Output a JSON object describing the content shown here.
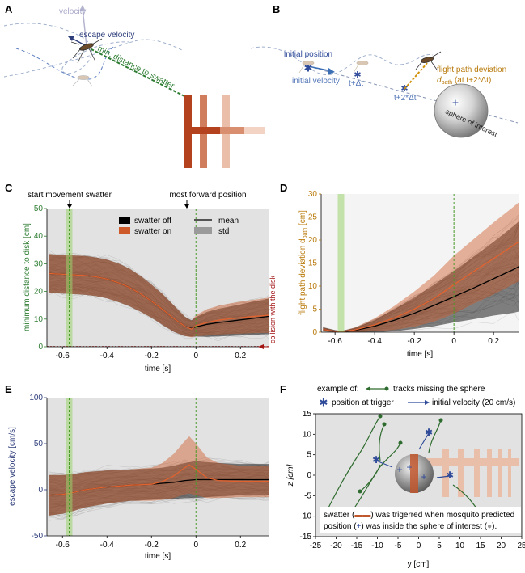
{
  "panels": {
    "A": "A",
    "B": "B",
    "C": "C",
    "D": "D",
    "E": "E",
    "F": "F"
  },
  "panelA": {
    "velocity": "velocity",
    "escape_velocity": "escape velocity",
    "min_distance": "min. distance to swatter"
  },
  "panelB": {
    "initial_position": "initial position",
    "initial_velocity": "initial velocity",
    "t_dt": "t+Δt",
    "t_2dt": "t+2*Δt",
    "deviation_line1": "flight path deviation",
    "deviation_line2": "d",
    "deviation_sub": "path",
    "deviation_suffix": " (at t+2*Δt)",
    "sphere": "sphere of interest"
  },
  "panelC": {
    "ylabel": "minimum distance to disk [cm]",
    "xlabel": "time [s]",
    "start_label": "start movement swatter",
    "forward_label": "most forward position",
    "collision_label": "collision with the disk",
    "legend": {
      "off": "swatter off",
      "on": "swatter on",
      "mean": "mean",
      "std": "std"
    },
    "yticks": [
      "0",
      "10",
      "20",
      "30",
      "40",
      "50"
    ],
    "xticks": [
      "-0.6",
      "-0.4",
      "-0.2",
      "0",
      "0.2"
    ]
  },
  "panelD": {
    "ylabel_main": "flight path deviation d",
    "ylabel_sub": "path",
    "ylabel_unit": " [cm]",
    "xlabel": "time [s]",
    "yticks": [
      "0",
      "5",
      "10",
      "15",
      "20",
      "25",
      "30"
    ],
    "xticks": [
      "-0.6",
      "-0.4",
      "-0.2",
      "0",
      "0.2"
    ]
  },
  "panelE": {
    "ylabel": "escape velocity [cm/s]",
    "xlabel": "time [s]",
    "yticks": [
      "-50",
      "0",
      "50",
      "100"
    ],
    "xticks": [
      "-0.6",
      "-0.4",
      "-0.2",
      "0",
      "0.2"
    ]
  },
  "panelF": {
    "example_of": "example of:",
    "tracks": "tracks missing the sphere",
    "position_trigger": "position at trigger",
    "initial_velocity": "initial velocity (20 cm/s)",
    "note_line1a": "swatter (",
    "note_line1b": ") was trigerred when mosquito predicted",
    "note_line2a": "position (",
    "note_line2b": ") was inside the sphere of interest (",
    "note_line2c": ").",
    "ylabel": "z [cm]",
    "xlabel": "y [cm]",
    "yticks": [
      "15",
      "10",
      "5",
      "0",
      "-5",
      "-10",
      "-15"
    ],
    "xticks": [
      "-25",
      "-20",
      "-15",
      "-10",
      "-5",
      "0",
      "5",
      "10",
      "15",
      "20",
      "25"
    ]
  },
  "chart_data": [
    {
      "type": "line",
      "panel": "C",
      "xlabel": "time [s]",
      "ylabel": "minimum distance to disk [cm]",
      "xlim": [
        -0.67,
        0.33
      ],
      "ylim": [
        0,
        50
      ],
      "series": [
        {
          "name": "swatter off",
          "x": [
            -0.66,
            -0.6,
            -0.55,
            -0.5,
            -0.45,
            -0.4,
            -0.35,
            -0.3,
            -0.25,
            -0.2,
            -0.15,
            -0.1,
            -0.05,
            -0.02,
            0,
            0.05,
            0.1,
            0.15,
            0.2,
            0.25,
            0.3,
            0.33
          ],
          "mean": [
            26.5,
            26.2,
            26,
            25.8,
            25.3,
            24.5,
            23.2,
            21.5,
            19.2,
            16.5,
            13.5,
            10.2,
            7.4,
            6.6,
            7.2,
            8.1,
            8.7,
            9.2,
            9.7,
            10.2,
            10.7,
            11
          ],
          "std": [
            7,
            7,
            7,
            7,
            7,
            7,
            7,
            6.8,
            6.5,
            6,
            5.6,
            4.8,
            3.5,
            3,
            3.5,
            4.5,
            5,
            5.3,
            5.6,
            6,
            6.2,
            6.5
          ]
        },
        {
          "name": "swatter on",
          "x": [
            -0.66,
            -0.6,
            -0.55,
            -0.5,
            -0.45,
            -0.4,
            -0.35,
            -0.3,
            -0.25,
            -0.2,
            -0.15,
            -0.1,
            -0.05,
            -0.02,
            0,
            0.05,
            0.1,
            0.15,
            0.2,
            0.25,
            0.3,
            0.33
          ],
          "mean": [
            26.5,
            26.2,
            26,
            25.8,
            25.3,
            24.5,
            23.2,
            21.5,
            19.2,
            16.5,
            13.5,
            10.2,
            7.4,
            6.4,
            7.6,
            8.8,
            9.6,
            10.1,
            10.5,
            10.9,
            11.2,
            11.4
          ],
          "std": [
            7,
            7,
            7,
            7,
            7,
            7,
            7,
            6.8,
            6.5,
            6,
            5.6,
            4.8,
            3.5,
            3,
            3.8,
            4.8,
            5.2,
            5.5,
            5.8,
            6,
            6.2,
            6.4
          ]
        }
      ],
      "markers": {
        "start_movement_swatter": -0.57,
        "most_forward_position": 0
      }
    },
    {
      "type": "line",
      "panel": "D",
      "xlabel": "time [s]",
      "ylabel": "flight path deviation d_path [cm]",
      "xlim": [
        -0.67,
        0.33
      ],
      "ylim": [
        0,
        30
      ],
      "series": [
        {
          "name": "swatter off",
          "x": [
            -0.66,
            -0.6,
            -0.57,
            -0.5,
            -0.4,
            -0.3,
            -0.2,
            -0.1,
            0,
            0.1,
            0.2,
            0.3,
            0.33
          ],
          "mean": [
            0.6,
            0.2,
            0.1,
            0.4,
            1.3,
            2.6,
            4.1,
            5.8,
            7.7,
            9.6,
            11.6,
            13.6,
            14.3
          ],
          "std": [
            0.4,
            0.2,
            0.1,
            0.5,
            1.3,
            2.4,
            3.4,
            4.5,
            5.6,
            6.8,
            8,
            9.4,
            9.8
          ]
        },
        {
          "name": "swatter on",
          "x": [
            -0.66,
            -0.6,
            -0.57,
            -0.5,
            -0.4,
            -0.3,
            -0.2,
            -0.1,
            0,
            0.1,
            0.2,
            0.3,
            0.33
          ],
          "mean": [
            0.6,
            0.2,
            0.1,
            0.5,
            1.6,
            3.1,
            5,
            7.3,
            10.3,
            13.2,
            16,
            18.8,
            19.7
          ],
          "std": [
            0.4,
            0.2,
            0.1,
            0.5,
            1.4,
            2.6,
            3.8,
            5,
            6.3,
            7,
            7.8,
            8.4,
            8.6
          ]
        }
      ],
      "markers": {
        "start_movement_swatter": -0.57,
        "most_forward_position": 0
      }
    },
    {
      "type": "line",
      "panel": "E",
      "xlabel": "time [s]",
      "ylabel": "escape velocity [cm/s]",
      "xlim": [
        -0.67,
        0.33
      ],
      "ylim": [
        -50,
        100
      ],
      "series": [
        {
          "name": "swatter off",
          "x": [
            -0.66,
            -0.6,
            -0.55,
            -0.5,
            -0.4,
            -0.3,
            -0.2,
            -0.15,
            -0.1,
            -0.05,
            0,
            0.05,
            0.1,
            0.2,
            0.3,
            0.33
          ],
          "mean": [
            -6,
            -5,
            -3,
            0,
            3,
            5,
            6,
            7,
            8,
            10,
            11,
            11,
            11,
            11,
            11,
            11
          ],
          "std": [
            22,
            21,
            20,
            19,
            18,
            17,
            17,
            17,
            18,
            19,
            20,
            19,
            18,
            17,
            17,
            17
          ]
        },
        {
          "name": "swatter on",
          "x": [
            -0.66,
            -0.6,
            -0.55,
            -0.5,
            -0.4,
            -0.3,
            -0.2,
            -0.15,
            -0.1,
            -0.05,
            -0.03,
            0,
            0.05,
            0.1,
            0.2,
            0.3,
            0.33
          ],
          "mean": [
            -6,
            -5,
            -3,
            0,
            3,
            5,
            6,
            9,
            15,
            24,
            27,
            22,
            13,
            10,
            9,
            9,
            9
          ],
          "std": [
            22,
            21,
            20,
            19,
            18,
            17,
            18,
            20,
            24,
            29,
            31,
            28,
            22,
            19,
            17,
            17,
            17
          ]
        }
      ],
      "markers": {
        "start_movement_swatter": -0.57,
        "most_forward_position": 0
      }
    }
  ]
}
